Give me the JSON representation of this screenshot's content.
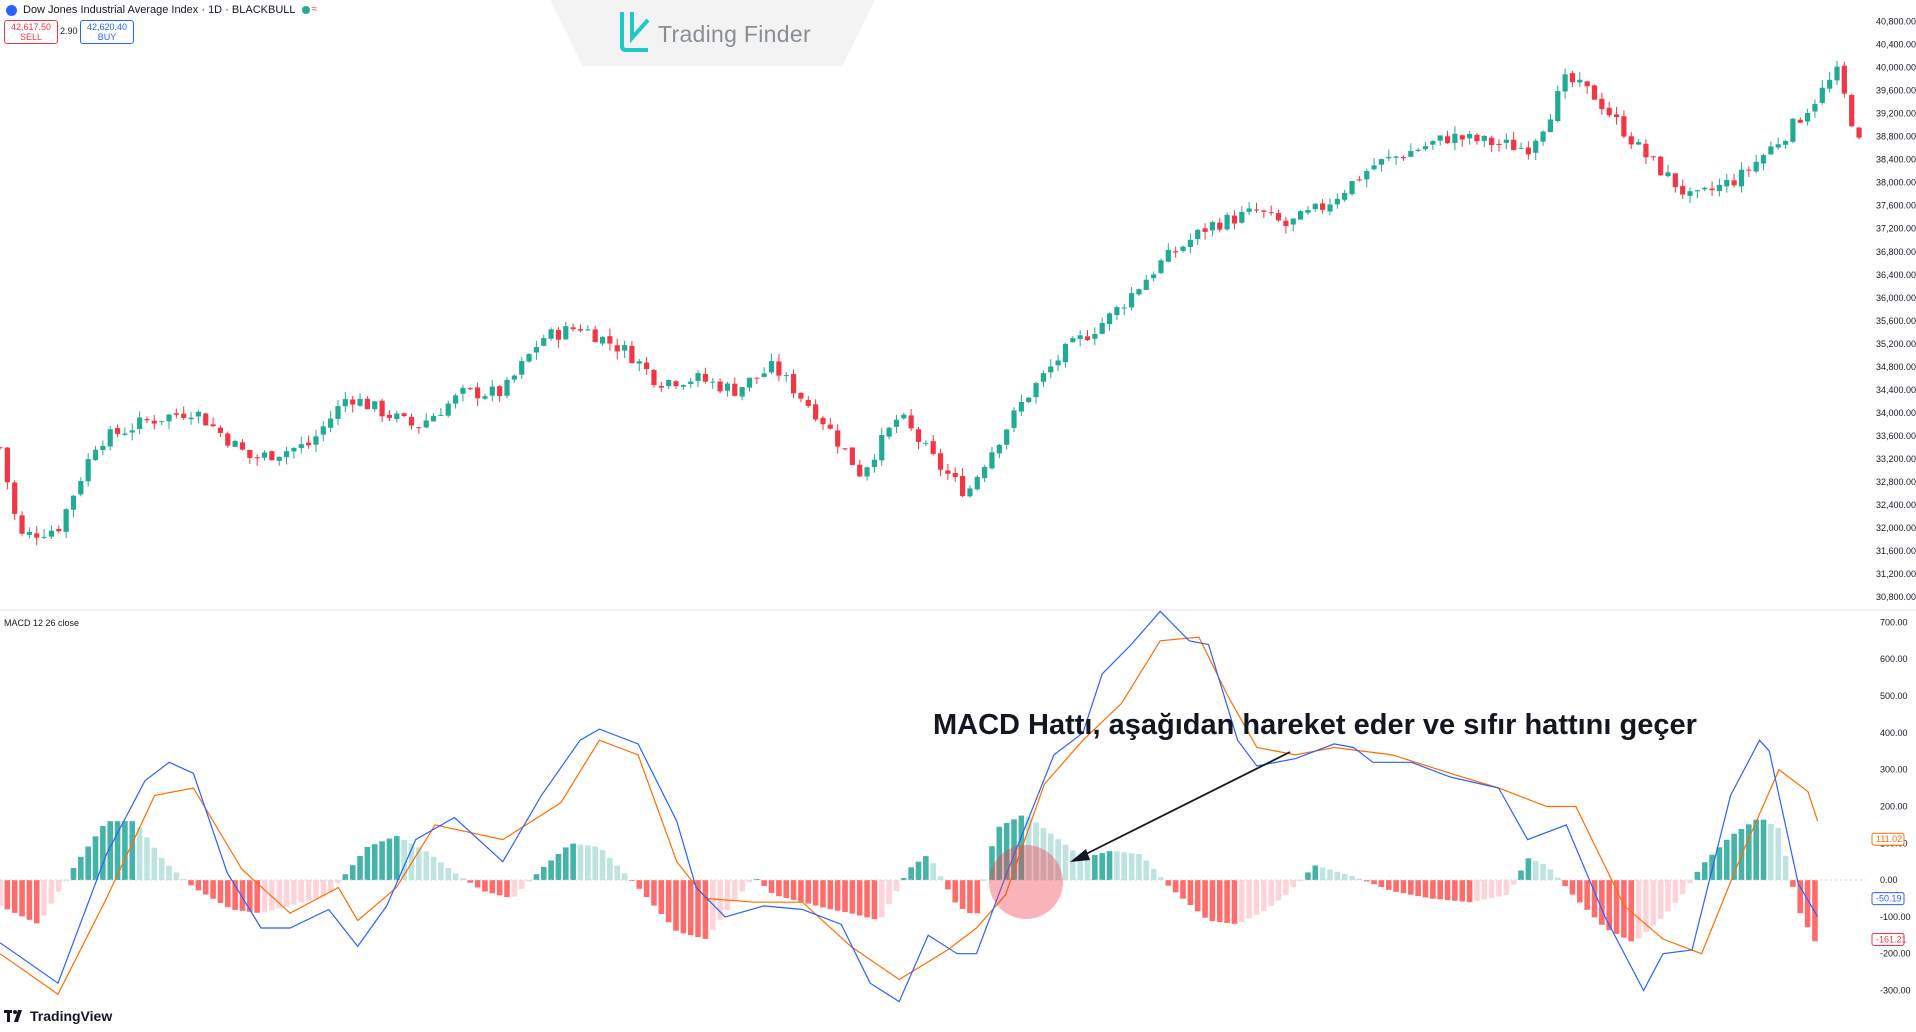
{
  "header": {
    "symbol_badge": "30",
    "title": "Dow Jones Industrial Average Index · 1D · BLACKBULL",
    "sell_price": "42,617.50",
    "sell_label": "SELL",
    "spread": "2.90",
    "buy_price": "42,620.40",
    "buy_label": "BUY"
  },
  "brand": {
    "name": "Trading Finder"
  },
  "footer": {
    "brand": "TradingView"
  },
  "colors": {
    "up": "#22ab94",
    "down": "#f23645",
    "macd_line": "#2962ff",
    "signal_line": "#ff6d00",
    "hist_up_strong": "#26a69a",
    "hist_up_weak": "#b2dfdb",
    "hist_down_strong": "#ff5252",
    "hist_down_weak": "#ffcdd2"
  },
  "chart_data": [
    {
      "type": "candlestick",
      "title": "Dow Jones Industrial Average Index · 1D · BLACKBULL",
      "price_axis_ticks": [
        "40,800.00",
        "40,400.00",
        "40,000.00",
        "39,600.00",
        "39,200.00",
        "38,800.00",
        "38,400.00",
        "38,000.00",
        "37,600.00",
        "37,200.00",
        "36,800.00",
        "36,400.00",
        "36,000.00",
        "35,600.00",
        "35,200.00",
        "34,800.00",
        "34,400.00",
        "34,000.00",
        "33,600.00",
        "33,200.00",
        "32,800.00",
        "32,400.00",
        "32,000.00",
        "31,600.00",
        "31,200.00",
        "30,800.00"
      ],
      "ylim": [
        30750,
        41000
      ],
      "close_path_approx": [
        [
          0,
          33400
        ],
        [
          20,
          31850
        ],
        [
          60,
          32000
        ],
        [
          100,
          33500
        ],
        [
          150,
          33850
        ],
        [
          200,
          34050
        ],
        [
          260,
          33200
        ],
        [
          320,
          33450
        ],
        [
          360,
          34300
        ],
        [
          430,
          33750
        ],
        [
          480,
          34350
        ],
        [
          520,
          34350
        ],
        [
          560,
          35300
        ],
        [
          600,
          35500
        ],
        [
          650,
          35050
        ],
        [
          680,
          34550
        ],
        [
          720,
          34600
        ],
        [
          760,
          34400
        ],
        [
          800,
          34800
        ],
        [
          850,
          33900
        ],
        [
          890,
          32950
        ],
        [
          930,
          33950
        ],
        [
          970,
          33100
        ],
        [
          1000,
          32600
        ],
        [
          1020,
          33200
        ],
        [
          1060,
          34250
        ],
        [
          1100,
          35050
        ],
        [
          1150,
          35700
        ],
        [
          1200,
          36600
        ],
        [
          1250,
          37250
        ],
        [
          1300,
          37500
        ],
        [
          1330,
          37250
        ],
        [
          1370,
          37600
        ],
        [
          1420,
          38300
        ],
        [
          1460,
          38550
        ],
        [
          1500,
          38800
        ],
        [
          1540,
          38700
        ],
        [
          1580,
          38600
        ],
        [
          1600,
          39100
        ],
        [
          1620,
          39800
        ],
        [
          1650,
          39500
        ],
        [
          1700,
          38500
        ],
        [
          1700,
          38500
        ],
        [
          1750,
          37700
        ],
        [
          1800,
          38100
        ],
        [
          1850,
          38900
        ],
        [
          1900,
          39900
        ],
        [
          1930,
          38300
        ]
      ]
    },
    {
      "type": "line",
      "title": "MACD 12 26 close",
      "axis_ticks": [
        "700.00",
        "600.00",
        "500.00",
        "400.00",
        "300.00",
        "200.00",
        "100.00",
        "0.00",
        "-100.00",
        "-200.00",
        "-300.00"
      ],
      "ylim": [
        -380,
        720
      ],
      "series": [
        {
          "name": "MACD",
          "points": [
            [
              0,
              -170
            ],
            [
              60,
              -280
            ],
            [
              110,
              70
            ],
            [
              150,
              270
            ],
            [
              175,
              320
            ],
            [
              200,
              290
            ],
            [
              235,
              20
            ],
            [
              270,
              -130
            ],
            [
              300,
              -130
            ],
            [
              340,
              -80
            ],
            [
              370,
              -180
            ],
            [
              400,
              -70
            ],
            [
              430,
              110
            ],
            [
              470,
              170
            ],
            [
              520,
              50
            ],
            [
              560,
              230
            ],
            [
              600,
              380
            ],
            [
              620,
              410
            ],
            [
              660,
              370
            ],
            [
              700,
              160
            ],
            [
              720,
              -20
            ],
            [
              750,
              -100
            ],
            [
              790,
              -70
            ],
            [
              830,
              -80
            ],
            [
              870,
              -120
            ],
            [
              900,
              -280
            ],
            [
              930,
              -330
            ],
            [
              960,
              -150
            ],
            [
              990,
              -200
            ],
            [
              1010,
              -200
            ],
            [
              1040,
              10
            ],
            [
              1090,
              340
            ],
            [
              1120,
              400
            ],
            [
              1140,
              560
            ],
            [
              1170,
              640
            ],
            [
              1200,
              730
            ],
            [
              1230,
              650
            ],
            [
              1250,
              640
            ],
            [
              1280,
              380
            ],
            [
              1300,
              310
            ],
            [
              1340,
              330
            ],
            [
              1380,
              370
            ],
            [
              1400,
              360
            ],
            [
              1420,
              320
            ],
            [
              1460,
              320
            ],
            [
              1500,
              280
            ],
            [
              1550,
              250
            ],
            [
              1580,
              110
            ],
            [
              1620,
              150
            ],
            [
              1660,
              -100
            ],
            [
              1700,
              -300
            ],
            [
              1720,
              -200
            ],
            [
              1750,
              -190
            ],
            [
              1790,
              230
            ],
            [
              1820,
              380
            ],
            [
              1830,
              350
            ],
            [
              1860,
              -10
            ],
            [
              1880,
              -100
            ]
          ]
        },
        {
          "name": "Signal",
          "points": [
            [
              0,
              -200
            ],
            [
              60,
              -310
            ],
            [
              110,
              -50
            ],
            [
              160,
              230
            ],
            [
              200,
              250
            ],
            [
              250,
              30
            ],
            [
              300,
              -90
            ],
            [
              350,
              -20
            ],
            [
              370,
              -110
            ],
            [
              410,
              -20
            ],
            [
              450,
              150
            ],
            [
              520,
              110
            ],
            [
              580,
              210
            ],
            [
              620,
              380
            ],
            [
              660,
              340
            ],
            [
              700,
              50
            ],
            [
              730,
              -50
            ],
            [
              780,
              -60
            ],
            [
              830,
              -60
            ],
            [
              880,
              -180
            ],
            [
              930,
              -270
            ],
            [
              980,
              -190
            ],
            [
              1010,
              -130
            ],
            [
              1040,
              -40
            ],
            [
              1080,
              260
            ],
            [
              1120,
              380
            ],
            [
              1160,
              480
            ],
            [
              1200,
              650
            ],
            [
              1240,
              660
            ],
            [
              1270,
              500
            ],
            [
              1300,
              360
            ],
            [
              1340,
              340
            ],
            [
              1380,
              360
            ],
            [
              1440,
              340
            ],
            [
              1500,
              290
            ],
            [
              1550,
              250
            ],
            [
              1600,
              200
            ],
            [
              1630,
              200
            ],
            [
              1680,
              -70
            ],
            [
              1720,
              -160
            ],
            [
              1760,
              -200
            ],
            [
              1800,
              60
            ],
            [
              1840,
              300
            ],
            [
              1870,
              240
            ],
            [
              1880,
              160
            ]
          ]
        },
        {
          "name": "Histogram",
          "points": [
            [
              0,
              -70
            ],
            [
              40,
              -120
            ],
            [
              80,
              50
            ],
            [
              110,
              160
            ],
            [
              140,
              160
            ],
            [
              170,
              50
            ],
            [
              200,
              -20
            ],
            [
              240,
              -80
            ],
            [
              270,
              -90
            ],
            [
              300,
              -70
            ],
            [
              340,
              -40
            ],
            [
              380,
              90
            ],
            [
              410,
              120
            ],
            [
              440,
              80
            ],
            [
              470,
              20
            ],
            [
              500,
              -30
            ],
            [
              530,
              -50
            ],
            [
              560,
              30
            ],
            [
              590,
              100
            ],
            [
              620,
              90
            ],
            [
              660,
              -20
            ],
            [
              700,
              -140
            ],
            [
              730,
              -160
            ],
            [
              750,
              -90
            ],
            [
              780,
              10
            ],
            [
              800,
              -40
            ],
            [
              830,
              -60
            ],
            [
              860,
              -80
            ],
            [
              880,
              -90
            ],
            [
              910,
              -110
            ],
            [
              940,
              30
            ],
            [
              960,
              70
            ],
            [
              990,
              -70
            ],
            [
              1010,
              -100
            ],
            [
              1030,
              140
            ],
            [
              1060,
              180
            ],
            [
              1090,
              120
            ],
            [
              1120,
              60
            ],
            [
              1150,
              80
            ],
            [
              1180,
              70
            ],
            [
              1210,
              -20
            ],
            [
              1250,
              -110
            ],
            [
              1280,
              -120
            ],
            [
              1310,
              -80
            ],
            [
              1330,
              -40
            ],
            [
              1360,
              40
            ],
            [
              1400,
              10
            ],
            [
              1440,
              -30
            ],
            [
              1480,
              -50
            ],
            [
              1520,
              -60
            ],
            [
              1560,
              -40
            ],
            [
              1580,
              60
            ],
            [
              1600,
              40
            ],
            [
              1630,
              -50
            ],
            [
              1660,
              -130
            ],
            [
              1690,
              -170
            ],
            [
              1720,
              -100
            ],
            [
              1740,
              -40
            ],
            [
              1760,
              40
            ],
            [
              1790,
              120
            ],
            [
              1820,
              170
            ],
            [
              1840,
              140
            ],
            [
              1860,
              -80
            ],
            [
              1880,
              -180
            ]
          ]
        }
      ],
      "value_labels": {
        "signal": "111.02",
        "macd": "-50.19",
        "histogram": "-161.21"
      }
    }
  ],
  "annotation": {
    "text": "MACD Hattı, aşağıdan hareket eder ve sıfır hattını geçer"
  }
}
